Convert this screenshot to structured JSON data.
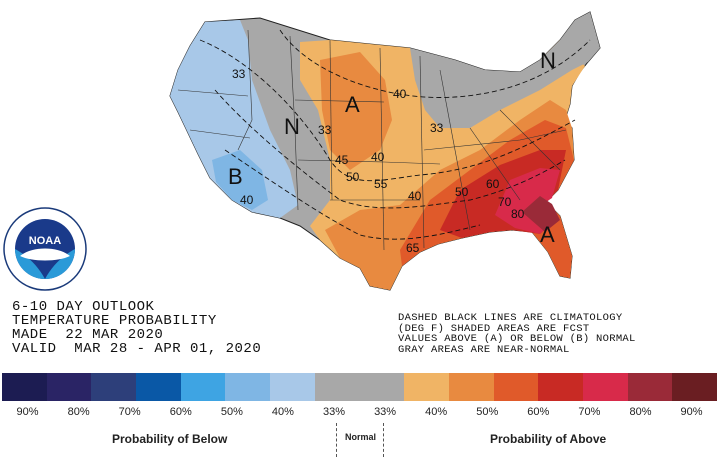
{
  "title_lines": [
    "6-10 DAY OUTLOOK",
    "TEMPERATURE PROBABILITY",
    "MADE  22 MAR 2020",
    "VALID  MAR 28 - APR 01, 2020"
  ],
  "note_lines": [
    "DASHED BLACK LINES ARE CLIMATOLOGY",
    "(DEG F) SHADED AREAS ARE FCST",
    "VALUES ABOVE (A) OR BELOW (B) NORMAL",
    "GRAY AREAS ARE NEAR-NORMAL"
  ],
  "logo": {
    "text": "NOAA",
    "ring_text": "NATIONAL OCEANIC AND ATMOSPHERIC ADMINISTRATION · U.S. DEPARTMENT OF COMMERCE"
  },
  "map_labels": {
    "region_letters": [
      "A",
      "N",
      "B",
      "N",
      "A"
    ],
    "climatology": [
      "33",
      "40",
      "33",
      "33",
      "45",
      "50",
      "40",
      "55",
      "40",
      "50",
      "60",
      "70",
      "65",
      "80",
      "40"
    ]
  },
  "legend": {
    "colors": [
      "#1c1c52",
      "#2a2465",
      "#2d3f7a",
      "#0a58a6",
      "#3ea4e3",
      "#7fb6e4",
      "#a8c8e8",
      "#a8a8a8",
      "#a8a8a8",
      "#f0b465",
      "#e88a40",
      "#e05a2a",
      "#c82a24",
      "#d82a4a",
      "#9a2a38",
      "#6a1e22"
    ],
    "ticks": [
      "90%",
      "80%",
      "70%",
      "60%",
      "50%",
      "40%",
      "33%",
      "33%",
      "40%",
      "50%",
      "60%",
      "70%",
      "80%",
      "90%"
    ],
    "below_label": "Probability of Below",
    "normal_label": "Normal",
    "above_label": "Probability of Above"
  }
}
